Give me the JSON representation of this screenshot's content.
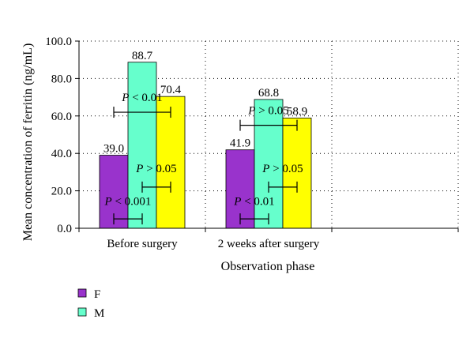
{
  "chart_data": {
    "type": "bar",
    "title": "",
    "xlabel": "Observation phase",
    "ylabel": "Mean concentration of ferritin (ng/mL)",
    "ylim": [
      0,
      100
    ],
    "yticks": [
      "0.0",
      "20.0",
      "40.0",
      "60.0",
      "80.0",
      "100.0"
    ],
    "grid": true,
    "legend_position": "bottom-left",
    "categories": [
      "Before surgery",
      "2 weeks after surgery"
    ],
    "series": [
      {
        "name": "F",
        "color": "#9933cc",
        "values": [
          39.0,
          41.9
        ],
        "labels": [
          "39.0",
          "41.9"
        ]
      },
      {
        "name": "M",
        "color": "#66ffcc",
        "values": [
          88.7,
          68.8
        ],
        "labels": [
          "88.7",
          "68.8"
        ]
      },
      {
        "name": "",
        "color": "#ffff00",
        "values": [
          70.4,
          58.9
        ],
        "labels": [
          "70.4",
          "58.9"
        ]
      }
    ],
    "annotations": [
      {
        "category": 0,
        "pair": "F-Y",
        "op": "< 0.01",
        "y": 62.0,
        "label_y": 68.0
      },
      {
        "category": 0,
        "pair": "M-Y",
        "op": "> 0.05",
        "y": 22.0,
        "label_y": 30.0
      },
      {
        "category": 0,
        "pair": "F-M",
        "op": "< 0.001",
        "y": 5.0,
        "label_y": 12.5
      },
      {
        "category": 1,
        "pair": "F-Y",
        "op": "> 0.05",
        "y": 55.0,
        "label_y": 61.0
      },
      {
        "category": 1,
        "pair": "M-Y",
        "op": "> 0.05",
        "y": 22.0,
        "label_y": 30.0
      },
      {
        "category": 1,
        "pair": "F-M",
        "op": "< 0.01",
        "y": 5.0,
        "label_y": 12.5
      }
    ],
    "p_symbol": "P"
  }
}
